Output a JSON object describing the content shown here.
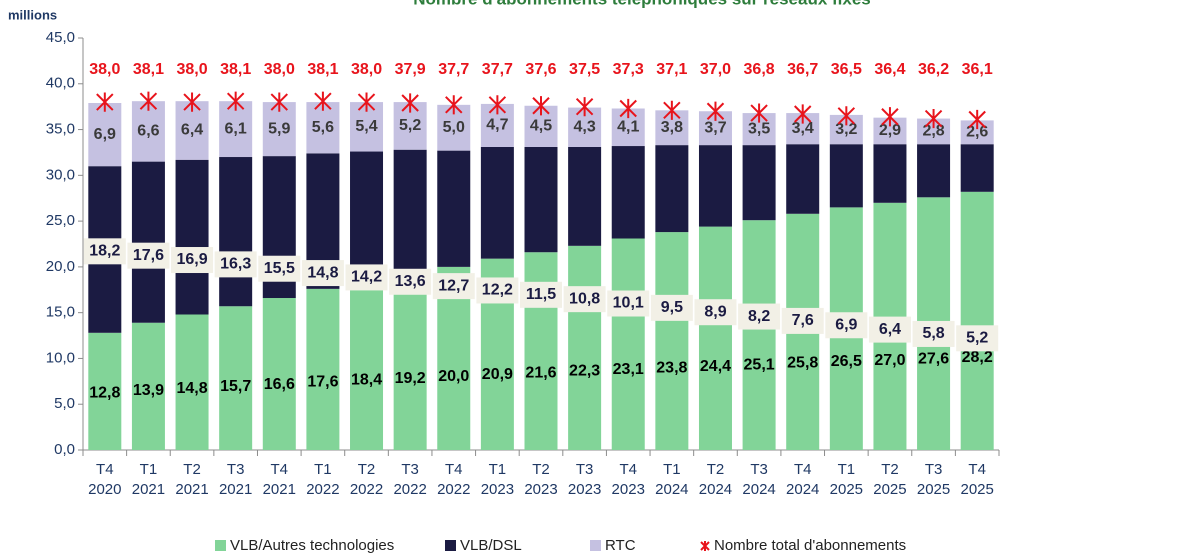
{
  "chart_data": {
    "type": "stacked_bar",
    "title": "Nombre d'abonnements téléphoniques sur réseaux fixes",
    "y_label": "millions",
    "categories": [
      [
        "T4",
        "2020"
      ],
      [
        "T1",
        "2021"
      ],
      [
        "T2",
        "2021"
      ],
      [
        "T3",
        "2021"
      ],
      [
        "T4",
        "2021"
      ],
      [
        "T1",
        "2022"
      ],
      [
        "T2",
        "2022"
      ],
      [
        "T3",
        "2022"
      ],
      [
        "T4",
        "2022"
      ],
      [
        "T1",
        "2023"
      ],
      [
        "T2",
        "2023"
      ],
      [
        "T3",
        "2023"
      ],
      [
        "T4",
        "2023"
      ],
      [
        "T1",
        "2024"
      ],
      [
        "T2",
        "2024"
      ],
      [
        "T3",
        "2024"
      ],
      [
        "T4",
        "2024"
      ],
      [
        "T1",
        "2025"
      ],
      [
        "T2",
        "2025"
      ],
      [
        "T3",
        "2025"
      ],
      [
        "T4",
        "2025"
      ]
    ],
    "series": [
      {
        "name": "VLB/Autres technologies",
        "color": "#82d498",
        "values": [
          12.8,
          13.9,
          14.8,
          15.7,
          16.6,
          17.6,
          18.4,
          19.2,
          20.0,
          20.9,
          21.6,
          22.3,
          23.1,
          23.8,
          24.4,
          25.1,
          25.8,
          26.5,
          27.0,
          27.6,
          28.2
        ],
        "value_labels": [
          "12,8",
          "13,9",
          "14,8",
          "15,7",
          "16,6",
          "17,6",
          "18,4",
          "19,2",
          "20,0",
          "20,9",
          "21,6",
          "22,3",
          "23,1",
          "23,8",
          "24,4",
          "25,1",
          "25,8",
          "26,5",
          "27,0",
          "27,6",
          "28,2"
        ]
      },
      {
        "name": "VLB/DSL",
        "color": "#1b1b42",
        "values": [
          18.2,
          17.6,
          16.9,
          16.3,
          15.5,
          14.8,
          14.2,
          13.6,
          12.7,
          12.2,
          11.5,
          10.8,
          10.1,
          9.5,
          8.9,
          8.2,
          7.6,
          6.9,
          6.4,
          5.8,
          5.2
        ],
        "value_labels": [
          "18,2",
          "17,6",
          "16,9",
          "16,3",
          "15,5",
          "14,8",
          "14,2",
          "13,6",
          "12,7",
          "12,2",
          "11,5",
          "10,8",
          "10,1",
          "9,5",
          "8,9",
          "8,2",
          "7,6",
          "6,9",
          "6,4",
          "5,8",
          "5,2"
        ]
      },
      {
        "name": "RTC",
        "color": "#c5c1e1",
        "values": [
          6.9,
          6.6,
          6.4,
          6.1,
          5.9,
          5.6,
          5.4,
          5.2,
          5.0,
          4.7,
          4.5,
          4.3,
          4.1,
          3.8,
          3.7,
          3.5,
          3.4,
          3.2,
          2.9,
          2.8,
          2.6
        ],
        "value_labels": [
          "6,9",
          "6,6",
          "6,4",
          "6,1",
          "5,9",
          "5,6",
          "5,4",
          "5,2",
          "5,0",
          "4,7",
          "4,5",
          "4,3",
          "4,1",
          "3,8",
          "3,7",
          "3,5",
          "3,4",
          "3,2",
          "2,9",
          "2,8",
          "2,6"
        ]
      }
    ],
    "total": {
      "name": "Nombre total d'abonnements",
      "color": "#e8141c",
      "values": [
        38.0,
        38.1,
        38.0,
        38.1,
        38.0,
        38.1,
        38.0,
        37.9,
        37.7,
        37.7,
        37.6,
        37.5,
        37.3,
        37.1,
        37.0,
        36.8,
        36.7,
        36.5,
        36.4,
        36.2,
        36.1
      ],
      "value_labels": [
        "38,0",
        "38,1",
        "38,0",
        "38,1",
        "38,0",
        "38,1",
        "38,0",
        "37,9",
        "37,7",
        "37,7",
        "37,6",
        "37,5",
        "37,3",
        "37,1",
        "37,0",
        "36,8",
        "36,7",
        "36,5",
        "36,4",
        "36,2",
        "36,1"
      ]
    },
    "ylim": [
      0,
      45
    ],
    "yticks": [
      {
        "value": 0,
        "label": "0,0"
      },
      {
        "value": 5,
        "label": "5,0"
      },
      {
        "value": 10,
        "label": "10,0"
      },
      {
        "value": 15,
        "label": "15,0"
      },
      {
        "value": 20,
        "label": "20,0"
      },
      {
        "value": 25,
        "label": "25,0"
      },
      {
        "value": 30,
        "label": "30,0"
      },
      {
        "value": 35,
        "label": "35,0"
      },
      {
        "value": 40,
        "label": "40,0"
      },
      {
        "value": 45,
        "label": "45,0"
      }
    ],
    "legend": "bottom"
  }
}
